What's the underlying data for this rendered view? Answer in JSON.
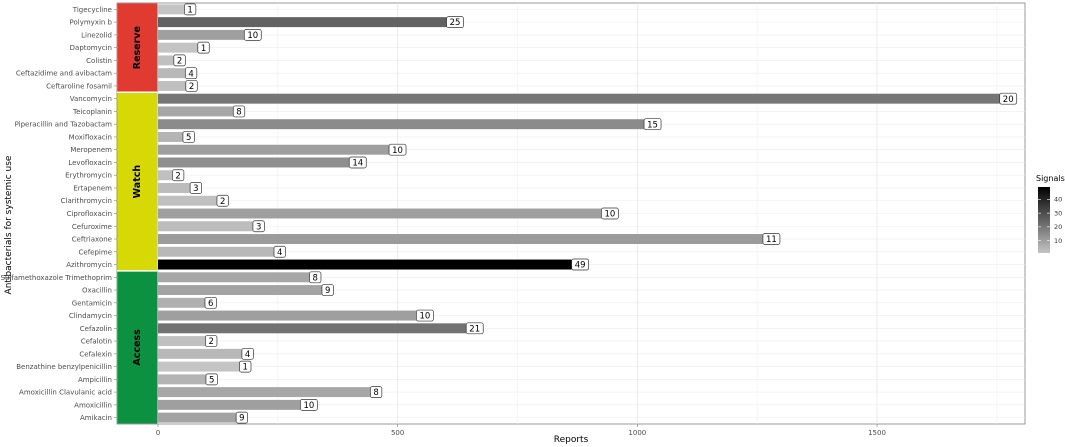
{
  "chart_data": {
    "type": "bar",
    "orientation": "horizontal",
    "xlabel": "Reports",
    "ylabel": "Antibacterials for systemic use",
    "xlim": [
      -85,
      1830
    ],
    "xticks": [
      0,
      500,
      1000,
      1500
    ],
    "grid": true,
    "legend": {
      "title": "Signals",
      "placement": "right",
      "ticks": [
        10,
        20,
        30,
        40
      ],
      "range": [
        1,
        49
      ],
      "low_color": "#c4c4c4",
      "high_color": "#000000"
    },
    "groups": [
      {
        "name": "Reserve",
        "color": "#e03a31",
        "drugs": [
          "Tigecycline",
          "Polymyxin b",
          "Linezolid",
          "Daptomycin",
          "Colistin",
          "Ceftazidime and avibactam",
          "Ceftaroline fosamil"
        ]
      },
      {
        "name": "Watch",
        "color": "#d6d906",
        "drugs": [
          "Vancomycin",
          "Teicoplanin",
          "Piperacillin and Tazobactam",
          "Moxifloxacin",
          "Meropenem",
          "Levofloxacin",
          "Erythromycin",
          "Ertapenem",
          "Clarithromycin",
          "Ciprofloxacin",
          "Cefuroxime",
          "Ceftriaxone",
          "Cefepime",
          "Azithromycin"
        ]
      },
      {
        "name": "Access",
        "color": "#0b9140",
        "drugs": [
          "Sulfamethoxazole Trimethoprim",
          "Oxacillin",
          "Gentamicin",
          "Clindamycin",
          "Cefazolin",
          "Cefalotin",
          "Cefalexin",
          "Benzathine benzylpenicillin",
          "Ampicillin",
          "Amoxicillin Clavulanic acid",
          "Amoxicillin",
          "Amikacin"
        ]
      }
    ],
    "bars": [
      {
        "drug": "Tigecycline",
        "reports": 55,
        "signals": 1
      },
      {
        "drug": "Polymyxin b",
        "reports": 602,
        "signals": 25
      },
      {
        "drug": "Linezolid",
        "reports": 180,
        "signals": 10
      },
      {
        "drug": "Daptomycin",
        "reports": 83,
        "signals": 1
      },
      {
        "drug": "Colistin",
        "reports": 33,
        "signals": 2
      },
      {
        "drug": "Ceftazidime and avibactam",
        "reports": 57,
        "signals": 4
      },
      {
        "drug": "Ceftaroline fosamil",
        "reports": 58,
        "signals": 2
      },
      {
        "drug": "Vancomycin",
        "reports": 1756,
        "signals": 20
      },
      {
        "drug": "Teicoplanin",
        "reports": 157,
        "signals": 8
      },
      {
        "drug": "Piperacillin and Tazobactam",
        "reports": 1014,
        "signals": 15
      },
      {
        "drug": "Moxifloxacin",
        "reports": 52,
        "signals": 5
      },
      {
        "drug": "Meropenem",
        "reports": 482,
        "signals": 10
      },
      {
        "drug": "Levofloxacin",
        "reports": 399,
        "signals": 14
      },
      {
        "drug": "Erythromycin",
        "reports": 30,
        "signals": 2
      },
      {
        "drug": "Ertapenem",
        "reports": 67,
        "signals": 3
      },
      {
        "drug": "Clarithromycin",
        "reports": 123,
        "signals": 2
      },
      {
        "drug": "Ciprofloxacin",
        "reports": 925,
        "signals": 10
      },
      {
        "drug": "Cefuroxime",
        "reports": 198,
        "signals": 3
      },
      {
        "drug": "Ceftriaxone",
        "reports": 1262,
        "signals": 11
      },
      {
        "drug": "Cefepime",
        "reports": 242,
        "signals": 4
      },
      {
        "drug": "Azithromycin",
        "reports": 863,
        "signals": 49
      },
      {
        "drug": "Sulfamethoxazole Trimethoprim",
        "reports": 316,
        "signals": 8
      },
      {
        "drug": "Oxacillin",
        "reports": 342,
        "signals": 9
      },
      {
        "drug": "Gentamicin",
        "reports": 98,
        "signals": 6
      },
      {
        "drug": "Clindamycin",
        "reports": 539,
        "signals": 10
      },
      {
        "drug": "Cefazolin",
        "reports": 643,
        "signals": 21
      },
      {
        "drug": "Cefalotin",
        "reports": 99,
        "signals": 2
      },
      {
        "drug": "Cefalexin",
        "reports": 175,
        "signals": 4
      },
      {
        "drug": "Benzathine benzylpenicillin",
        "reports": 170,
        "signals": 1
      },
      {
        "drug": "Ampicillin",
        "reports": 100,
        "signals": 5
      },
      {
        "drug": "Amoxicillin Clavulanic acid",
        "reports": 443,
        "signals": 8
      },
      {
        "drug": "Amoxicillin",
        "reports": 297,
        "signals": 10
      },
      {
        "drug": "Amikacin",
        "reports": 163,
        "signals": 9
      }
    ]
  }
}
